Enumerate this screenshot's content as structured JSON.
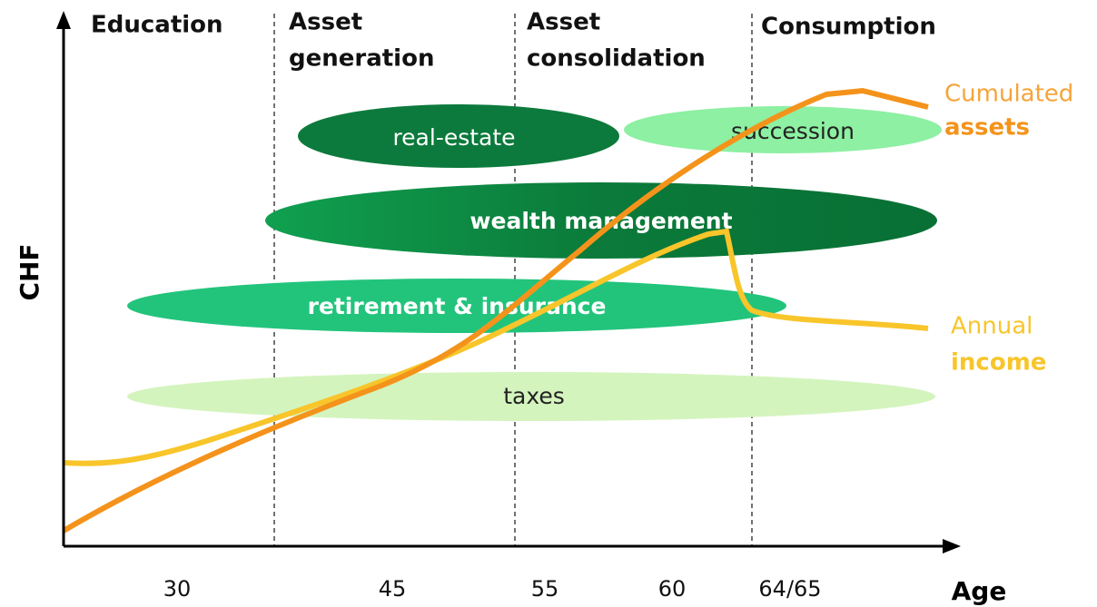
{
  "axes": {
    "y_label": "CHF",
    "x_label": "Age",
    "x_labels": [
      "30",
      "45",
      "55",
      "60",
      "64/65"
    ]
  },
  "phases": [
    {
      "lines": [
        "Education"
      ]
    },
    {
      "lines": [
        "Asset",
        "generation"
      ]
    },
    {
      "lines": [
        "Asset",
        "consolidation"
      ]
    },
    {
      "lines": [
        "Consumption"
      ]
    }
  ],
  "bands": [
    "real-estate",
    "succession",
    "wealth management",
    "retirement & insurance",
    "taxes"
  ],
  "curves": {
    "assets": [
      "Cumulated",
      "assets"
    ],
    "income": [
      "Annual",
      "income"
    ]
  }
}
